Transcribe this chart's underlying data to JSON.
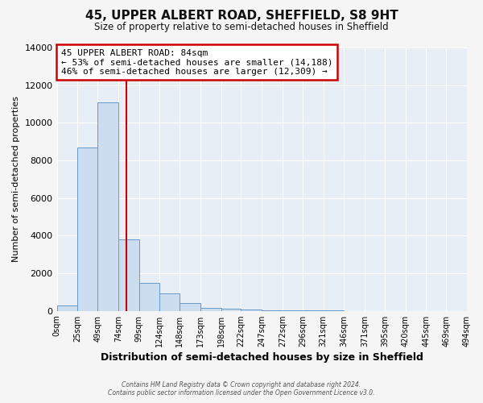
{
  "title": "45, UPPER ALBERT ROAD, SHEFFIELD, S8 9HT",
  "subtitle": "Size of property relative to semi-detached houses in Sheffield",
  "bar_left_edges": [
    0,
    25,
    49,
    74,
    99,
    124,
    148,
    173,
    198,
    222,
    247,
    272,
    296,
    321,
    346,
    371,
    395,
    420,
    445,
    469
  ],
  "bar_widths": [
    25,
    24,
    25,
    25,
    25,
    24,
    25,
    25,
    24,
    25,
    25,
    24,
    25,
    25,
    25,
    24,
    25,
    25,
    24,
    25
  ],
  "bar_heights": [
    300,
    8700,
    11100,
    3800,
    1500,
    950,
    400,
    150,
    100,
    80,
    50,
    30,
    20,
    10,
    5,
    3,
    2,
    1,
    1,
    1
  ],
  "bar_color": "#ccddef",
  "bar_edge_color": "#6699cc",
  "xlim": [
    0,
    494
  ],
  "ylim": [
    0,
    14000
  ],
  "yticks": [
    0,
    2000,
    4000,
    6000,
    8000,
    10000,
    12000,
    14000
  ],
  "xtick_positions": [
    0,
    25,
    49,
    74,
    99,
    124,
    148,
    173,
    198,
    222,
    247,
    272,
    296,
    321,
    346,
    371,
    395,
    420,
    445,
    469,
    494
  ],
  "xtick_labels": [
    "0sqm",
    "25sqm",
    "49sqm",
    "74sqm",
    "99sqm",
    "124sqm",
    "148sqm",
    "173sqm",
    "198sqm",
    "222sqm",
    "247sqm",
    "272sqm",
    "296sqm",
    "321sqm",
    "346sqm",
    "371sqm",
    "395sqm",
    "420sqm",
    "445sqm",
    "469sqm",
    "494sqm"
  ],
  "xlabel": "Distribution of semi-detached houses by size in Sheffield",
  "ylabel": "Number of semi-detached properties",
  "property_line_x": 84,
  "property_line_color": "#cc0000",
  "annotation_title": "45 UPPER ALBERT ROAD: 84sqm",
  "annotation_line1": "← 53% of semi-detached houses are smaller (14,188)",
  "annotation_line2": "46% of semi-detached houses are larger (12,309) →",
  "annotation_box_color": "#cc0000",
  "annotation_box_fill": "#ffffff",
  "footer_line1": "Contains HM Land Registry data © Crown copyright and database right 2024.",
  "footer_line2": "Contains public sector information licensed under the Open Government Licence v3.0.",
  "plot_bg_color": "#e8eef5",
  "fig_bg_color": "#f5f5f5",
  "grid_color": "#ffffff"
}
